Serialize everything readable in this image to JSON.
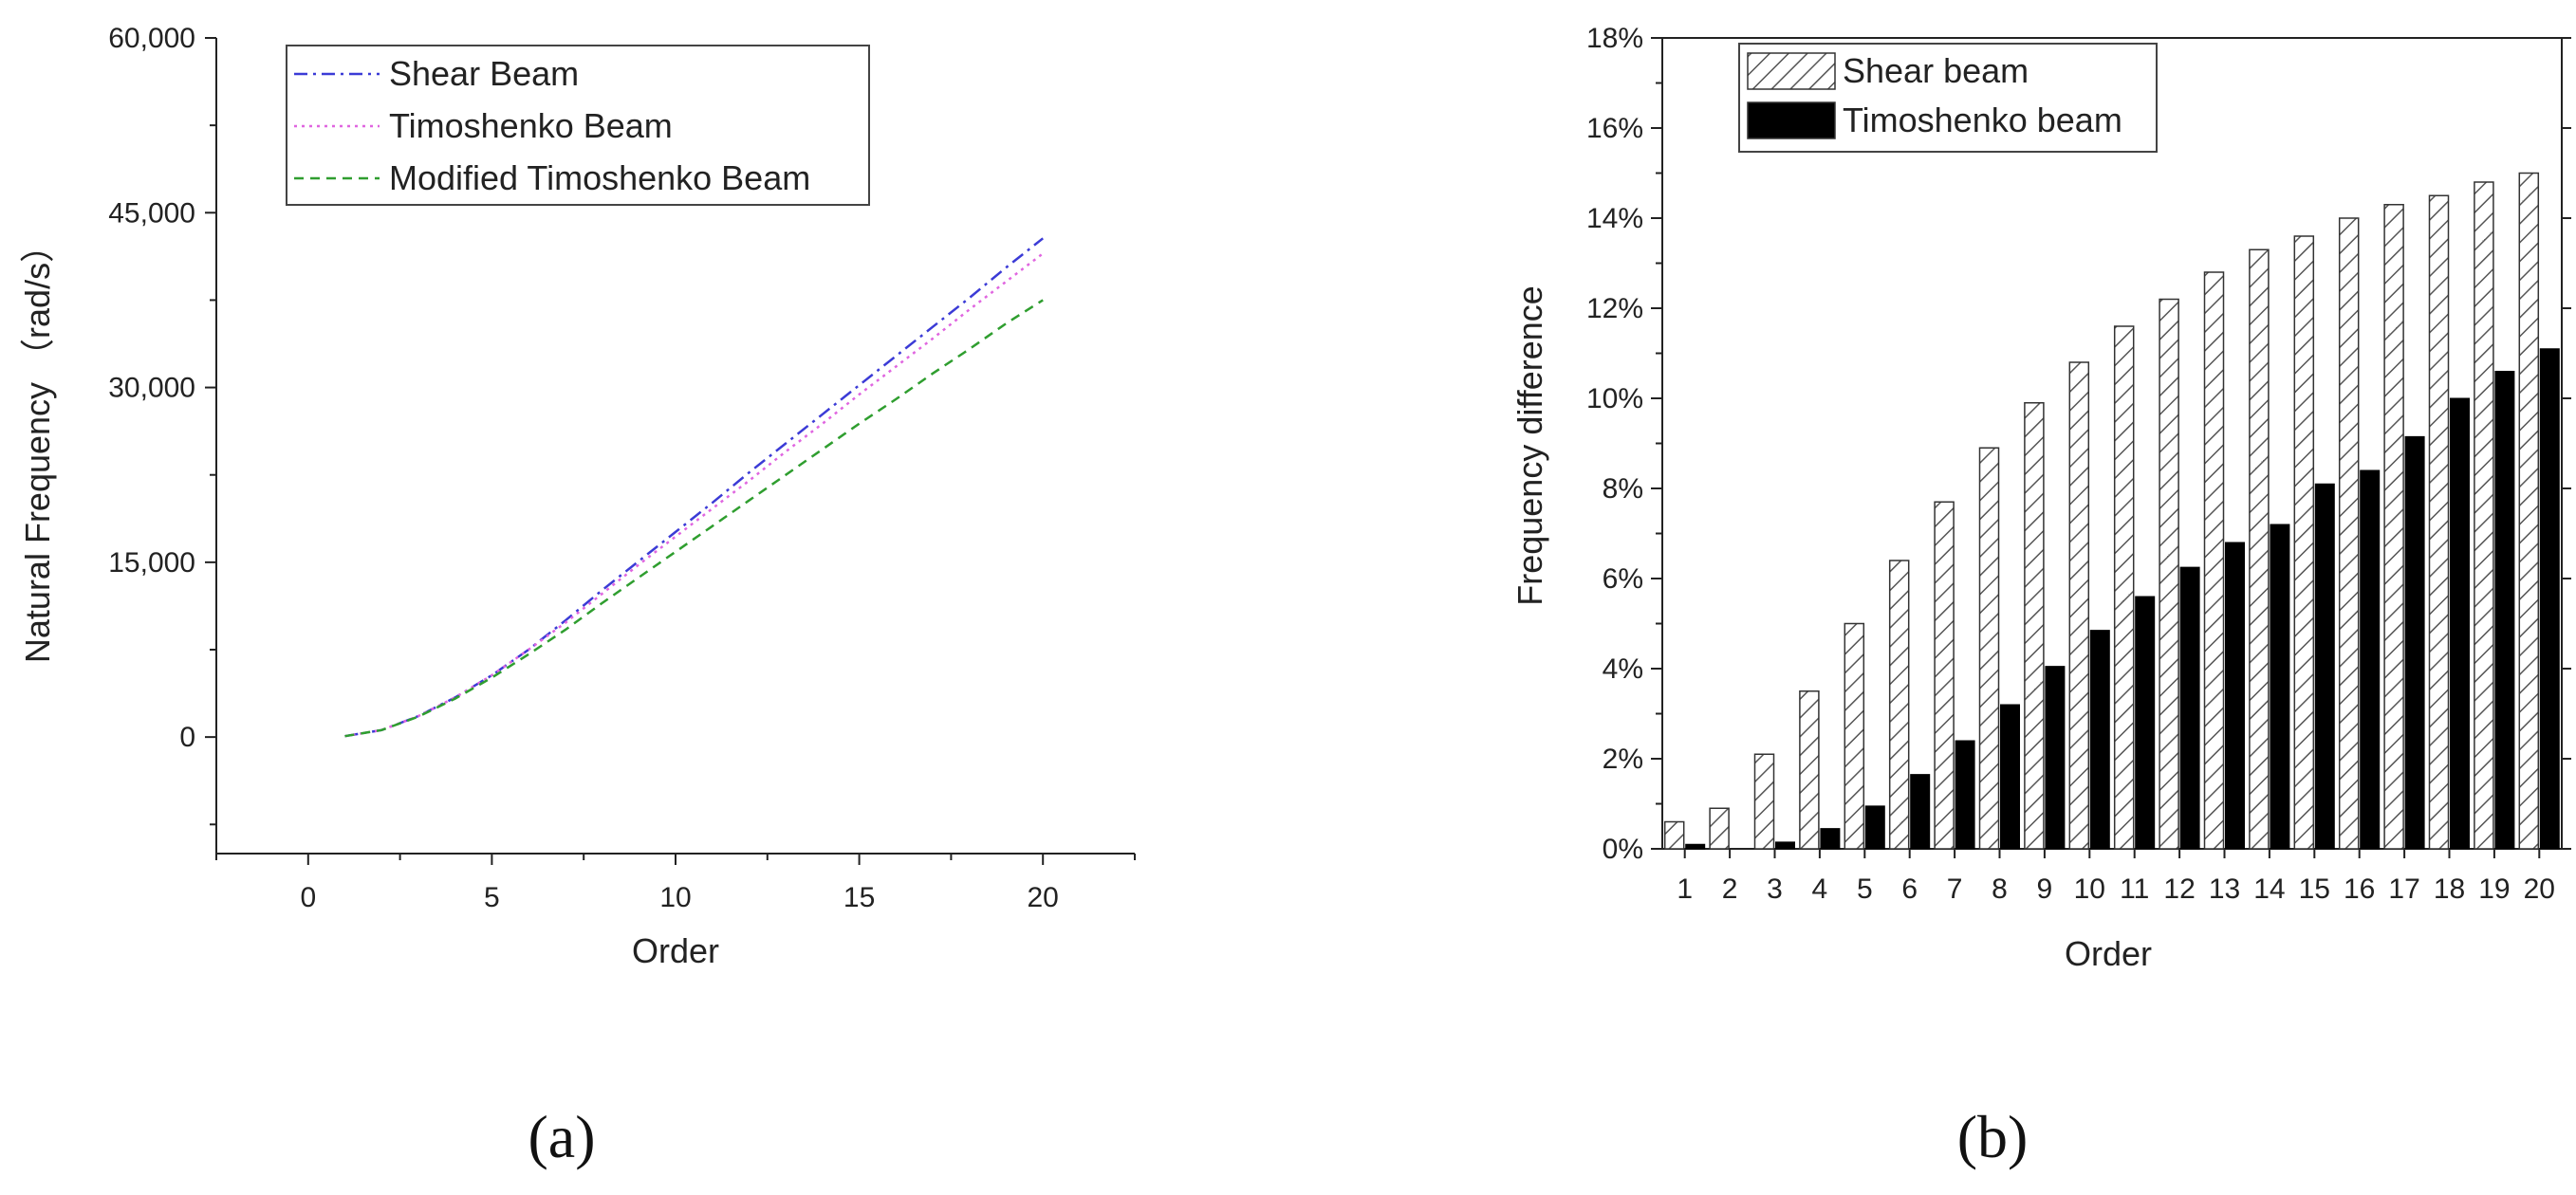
{
  "chart_data": [
    {
      "type": "line",
      "caption": "(a)",
      "xlabel": "Order",
      "ylabel": "Natural Frequency （rad/s）",
      "xlim": [
        -2.5,
        22.5
      ],
      "ylim": [
        -10000,
        60000
      ],
      "xticks": [
        "0",
        "5",
        "10",
        "15",
        "20"
      ],
      "yticks": [
        "0",
        "15,000",
        "30,000",
        "45,000",
        "60,000"
      ],
      "grid": false,
      "legend_position": "top-left",
      "x": [
        1,
        2,
        3,
        4,
        5,
        6,
        7,
        8,
        9,
        10,
        11,
        12,
        13,
        14,
        15,
        16,
        17,
        18,
        19,
        20
      ],
      "series": [
        {
          "name": "Shear Beam",
          "color": "#3b3bd6",
          "dash": "dashdot",
          "values": [
            80,
            600,
            1800,
            3400,
            5300,
            7500,
            10000,
            12600,
            15100,
            17600,
            20100,
            22700,
            25200,
            27700,
            30200,
            32700,
            35200,
            37700,
            40300,
            42800
          ]
        },
        {
          "name": "Timoshenko Beam",
          "color": "#e066e0",
          "dash": "dot",
          "values": [
            80,
            600,
            1800,
            3400,
            5300,
            7500,
            9800,
            12300,
            14800,
            17200,
            19600,
            22000,
            24500,
            26900,
            29400,
            31800,
            34200,
            36700,
            39100,
            41500
          ]
        },
        {
          "name": "Modified Timoshenko Beam",
          "color": "#2f9e2f",
          "dash": "dash",
          "values": [
            80,
            600,
            1750,
            3300,
            5100,
            7100,
            9200,
            11500,
            13700,
            15900,
            18100,
            20300,
            22500,
            24700,
            26900,
            29000,
            31200,
            33300,
            35500,
            37500
          ]
        }
      ]
    },
    {
      "type": "bar",
      "caption": "(b)",
      "xlabel": "Order",
      "ylabel": "Frequency difference",
      "ylim": [
        0,
        18
      ],
      "yticks": [
        "0%",
        "2%",
        "4%",
        "6%",
        "8%",
        "10%",
        "12%",
        "14%",
        "16%",
        "18%"
      ],
      "categories": [
        "1",
        "2",
        "3",
        "4",
        "5",
        "6",
        "7",
        "8",
        "9",
        "10",
        "11",
        "12",
        "13",
        "14",
        "15",
        "16",
        "17",
        "18",
        "19",
        "20"
      ],
      "grid": false,
      "legend_position": "top-left",
      "series": [
        {
          "name": "Shear beam",
          "fill": "hatch",
          "values": [
            0.6,
            0.9,
            2.1,
            3.5,
            5.0,
            6.4,
            7.7,
            8.9,
            9.9,
            10.8,
            11.6,
            12.2,
            12.8,
            13.3,
            13.6,
            14.0,
            14.3,
            14.5,
            14.8,
            15.0
          ]
        },
        {
          "name": "Timoshenko beam",
          "fill": "#000000",
          "values": [
            0.1,
            0.0,
            0.15,
            0.45,
            0.95,
            1.65,
            2.4,
            3.2,
            4.05,
            4.85,
            5.6,
            6.25,
            6.8,
            7.2,
            8.1,
            8.4,
            9.15,
            10.0,
            10.6,
            11.1
          ]
        }
      ]
    }
  ]
}
